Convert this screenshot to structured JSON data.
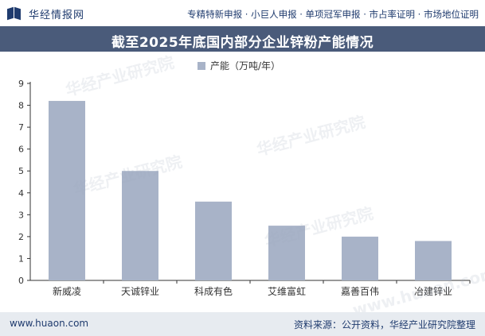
{
  "header": {
    "logo_text": "华经情报网",
    "tagline": "专精特新申报 · 小巨人申报 · 单项冠军申报 · 市占率证明 · 市场地位证明"
  },
  "chart_data": {
    "type": "bar",
    "title": "截至2025年底国内部分企业锌粉产能情况",
    "legend": {
      "label": "产能（万吨/年）",
      "position": "top-center"
    },
    "categories": [
      "新威凌",
      "天诚锌业",
      "科成有色",
      "艾维富虹",
      "嘉善百伟",
      "冶建锌业"
    ],
    "series": [
      {
        "name": "产能（万吨/年）",
        "values": [
          8.2,
          5.0,
          3.6,
          2.5,
          2.0,
          1.8
        ],
        "color": "#a8b3c8"
      }
    ],
    "yticks": [
      "0",
      "1",
      "2",
      "3",
      "4",
      "5",
      "6",
      "7",
      "8",
      "9"
    ],
    "ylim": [
      0,
      9
    ],
    "grid": false
  },
  "watermarks": [
    "华经产业研究院",
    "华经产业研究院",
    "华经产业研究院",
    "华经产业研究院",
    "www.huaon.com"
  ],
  "footer": {
    "url": "www.huaon.com",
    "source": "资料来源：公开资料，华经产业研究院整理"
  }
}
